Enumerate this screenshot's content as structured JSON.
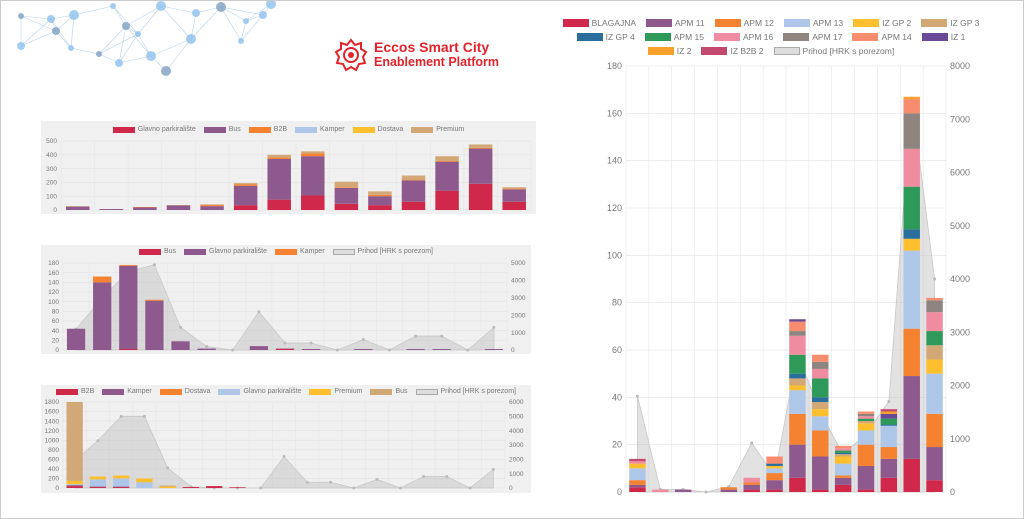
{
  "brand": {
    "line1": "Eccos Smart City",
    "line2": "Enablement Platform"
  },
  "charts": [
    {
      "type": "bar",
      "stacked": true,
      "yleft": {
        "max": 500,
        "step": 100
      },
      "categories_count": 14,
      "series": [
        {
          "name": "Glavno parkiralište",
          "color": "#d0284a",
          "values": [
            0,
            0,
            0,
            0,
            0,
            35,
            75,
            105,
            45,
            35,
            60,
            140,
            190,
            60
          ]
        },
        {
          "name": "Bus",
          "color": "#8e5a8e",
          "values": [
            25,
            7,
            20,
            33,
            28,
            140,
            295,
            285,
            115,
            65,
            155,
            210,
            255,
            90
          ]
        },
        {
          "name": "B2B",
          "color": "#f58231",
          "values": [
            0,
            0,
            2,
            0,
            8,
            10,
            10,
            20,
            5,
            10,
            5,
            5,
            5,
            5
          ]
        },
        {
          "name": "Kamper",
          "color": "#aec7e8",
          "values": [
            0,
            0,
            0,
            0,
            0,
            0,
            0,
            0,
            0,
            0,
            0,
            0,
            0,
            0
          ]
        },
        {
          "name": "Dostava",
          "color": "#fdbf2d",
          "values": [
            0,
            0,
            0,
            0,
            0,
            0,
            0,
            0,
            0,
            0,
            0,
            0,
            0,
            0
          ]
        },
        {
          "name": "Premium",
          "color": "#d2a877",
          "values": [
            3,
            0,
            0,
            3,
            5,
            10,
            20,
            15,
            40,
            25,
            30,
            35,
            25,
            10
          ]
        }
      ]
    },
    {
      "type": "bar",
      "stacked": true,
      "yleft": {
        "max": 180,
        "step": 20
      },
      "yright": {
        "max": 5000,
        "step": 1000
      },
      "categories_count": 17,
      "series": [
        {
          "name": "Bus",
          "color": "#d0284a",
          "values": [
            0,
            0,
            2,
            0,
            0,
            0,
            0,
            0,
            2,
            0,
            0,
            0,
            0,
            0,
            0,
            0,
            0
          ]
        },
        {
          "name": "Glavno parkiralište",
          "color": "#8e5a8e",
          "values": [
            44,
            140,
            172,
            102,
            18,
            3,
            0,
            8,
            1,
            2,
            0,
            2,
            0,
            2,
            2,
            0,
            2
          ]
        },
        {
          "name": "Kamper",
          "color": "#f58231",
          "values": [
            0,
            12,
            2,
            2,
            0,
            0,
            0,
            0,
            0,
            0,
            0,
            0,
            0,
            0,
            0,
            0,
            0
          ]
        },
        {
          "name": "Prihod [HRK s porezom]",
          "color": "#dddddd",
          "line": true,
          "values": [
            1200,
            3000,
            4500,
            4900,
            1300,
            200,
            0,
            2200,
            400,
            400,
            0,
            600,
            0,
            800,
            800,
            0,
            1300
          ]
        }
      ]
    },
    {
      "type": "bar",
      "stacked": true,
      "yleft": {
        "max": 1800,
        "step": 200
      },
      "yright": {
        "max": 6000,
        "step": 1000
      },
      "categories_count": 19,
      "series": [
        {
          "name": "B2B",
          "color": "#d0284a",
          "values": [
            40,
            20,
            20,
            0,
            0,
            20,
            40,
            15,
            0,
            0,
            0,
            0,
            0,
            0,
            0,
            0,
            0,
            0,
            0
          ]
        },
        {
          "name": "Kamper",
          "color": "#8e5a8e",
          "values": [
            20,
            10,
            10,
            0,
            0,
            0,
            0,
            0,
            0,
            0,
            0,
            0,
            0,
            0,
            0,
            0,
            0,
            0,
            0
          ]
        },
        {
          "name": "Dostava",
          "color": "#f58231",
          "values": [
            0,
            0,
            0,
            0,
            0,
            0,
            0,
            0,
            0,
            0,
            0,
            0,
            0,
            0,
            0,
            0,
            0,
            0,
            0
          ]
        },
        {
          "name": "Glavno parkiralište",
          "color": "#aec7e8",
          "values": [
            20,
            150,
            170,
            120,
            0,
            0,
            0,
            0,
            0,
            0,
            0,
            0,
            0,
            0,
            0,
            0,
            0,
            0,
            0
          ]
        },
        {
          "name": "Premium",
          "color": "#fdbf2d",
          "values": [
            70,
            60,
            60,
            80,
            30,
            0,
            0,
            0,
            0,
            0,
            0,
            0,
            0,
            0,
            0,
            0,
            0,
            0,
            0
          ]
        },
        {
          "name": "Bus",
          "color": "#d2a877",
          "values": [
            1650,
            0,
            0,
            0,
            20,
            0,
            0,
            0,
            0,
            0,
            0,
            0,
            0,
            0,
            0,
            0,
            0,
            0,
            0
          ]
        },
        {
          "name": "Prihod [HRK s porezom]",
          "color": "#dddddd",
          "line": true,
          "values": [
            1900,
            3300,
            5000,
            5000,
            1400,
            100,
            0,
            0,
            0,
            2200,
            400,
            400,
            0,
            600,
            0,
            800,
            800,
            0,
            1300
          ]
        }
      ]
    },
    {
      "type": "bar",
      "stacked": true,
      "yleft": {
        "max": 180,
        "step": 20
      },
      "yright": {
        "max": 8000,
        "step": 1000
      },
      "categories_count": 14,
      "series": [
        {
          "name": "BLAGAJNA",
          "color": "#d0284a",
          "values": [
            2,
            0,
            0,
            0,
            0,
            1,
            1,
            6,
            1,
            3,
            1,
            6,
            14,
            5
          ]
        },
        {
          "name": "APM 11",
          "color": "#8e5a8e",
          "values": [
            1,
            0,
            1,
            0,
            1,
            2,
            4,
            14,
            14,
            3,
            10,
            8,
            35,
            14
          ]
        },
        {
          "name": "APM 12",
          "color": "#f58231",
          "values": [
            2,
            0,
            0,
            0,
            1,
            1,
            3,
            13,
            11,
            1,
            9,
            5,
            20,
            14
          ]
        },
        {
          "name": "APM 13",
          "color": "#aec7e8",
          "values": [
            5,
            0,
            0,
            0,
            0,
            0,
            2,
            10,
            6,
            5,
            6,
            9,
            33,
            17
          ]
        },
        {
          "name": "IZ GP 2",
          "color": "#fdbf2d",
          "values": [
            2,
            0,
            0,
            0,
            0,
            0,
            1,
            2,
            3,
            3,
            3,
            0,
            5,
            6
          ]
        },
        {
          "name": "IZ GP 3",
          "color": "#d2a877",
          "values": [
            0,
            0,
            0,
            0,
            0,
            0,
            0,
            3,
            3,
            1,
            1,
            0,
            0,
            6
          ]
        },
        {
          "name": "IZ GP 4",
          "color": "#2a6e9e",
          "values": [
            0,
            0,
            0,
            0,
            0,
            0,
            1,
            2,
            2,
            0.5,
            0,
            0.5,
            4,
            0
          ]
        },
        {
          "name": "APM 15",
          "color": "#2e9a5a",
          "values": [
            0,
            0,
            0,
            0,
            0,
            0,
            0,
            8,
            8,
            1,
            1,
            2.5,
            18,
            6
          ]
        },
        {
          "name": "APM 16",
          "color": "#f08ca0",
          "values": [
            1,
            1,
            0,
            0,
            0,
            2,
            0,
            8,
            4,
            1,
            1,
            0,
            16,
            8
          ]
        },
        {
          "name": "APM 17",
          "color": "#8f8580",
          "values": [
            0,
            0,
            0,
            0,
            0,
            0,
            0,
            2,
            3,
            0,
            1,
            0,
            15,
            5
          ]
        },
        {
          "name": "APM 14",
          "color": "#f88c6e",
          "values": [
            0,
            0,
            0,
            0,
            0,
            0,
            3,
            4,
            3,
            1,
            1,
            0,
            6,
            1
          ]
        },
        {
          "name": "IZ 1",
          "color": "#6a4a96",
          "values": [
            0,
            0,
            0,
            0,
            0,
            0,
            0,
            1,
            0,
            0,
            0,
            2,
            0,
            0
          ]
        },
        {
          "name": "IZ 2",
          "color": "#f7a02a",
          "values": [
            0,
            0,
            0,
            0,
            0,
            0,
            0,
            0,
            0,
            0,
            0,
            1,
            1,
            0
          ]
        },
        {
          "name": "IZ B2B 2",
          "color": "#c24a6e",
          "values": [
            1,
            0,
            0,
            0,
            0,
            0,
            0,
            0,
            0,
            0,
            0,
            1,
            0,
            0
          ]
        },
        {
          "name": "Prihod [HRK s porezom]",
          "color": "#dddddd",
          "line": true,
          "values": [
            1800,
            50,
            50,
            0,
            100,
            920,
            300,
            2600,
            1500,
            700,
            1100,
            1700,
            7400,
            4000
          ]
        }
      ]
    }
  ]
}
